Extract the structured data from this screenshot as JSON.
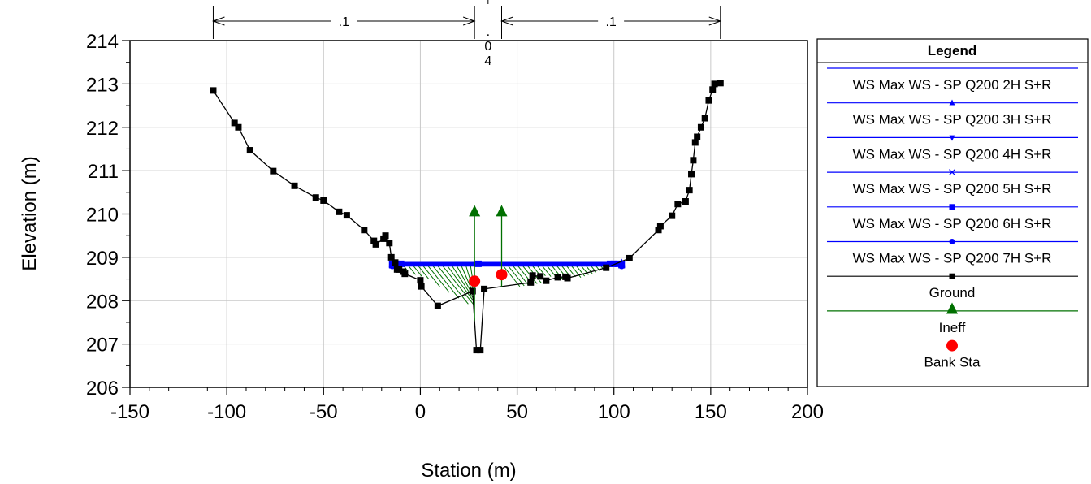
{
  "chart_data": {
    "type": "line",
    "title": "",
    "xlabel": "Station (m)",
    "ylabel": "Elevation (m)",
    "xlim": [
      -150,
      200
    ],
    "ylim": [
      206,
      214
    ],
    "x_ticks": [
      "-150",
      "-100",
      "-50",
      "0",
      "50",
      "100",
      "150",
      "200"
    ],
    "y_ticks": [
      "206",
      "207",
      "208",
      "209",
      "210",
      "211",
      "212",
      "213",
      "214"
    ],
    "grid": true,
    "legend_placement": "right",
    "legend_title": "Legend",
    "manning_n": {
      "left": {
        "label": ".1",
        "from": -107,
        "to": 28
      },
      "channel": {
        "label": ".04",
        "from": 28,
        "to": 42
      },
      "right": {
        "label": ".1",
        "from": 42,
        "to": 155
      }
    },
    "series": [
      {
        "name": "WS Max WS - SP Q200 2H S+R",
        "color": "#0000ff",
        "marker": "none",
        "x": [
          -14.5,
          104
        ],
        "y": [
          208.85,
          208.85
        ]
      },
      {
        "name": "WS Max WS - SP Q200 3H S+R",
        "color": "#0000ff",
        "marker": "triangle-up",
        "x": [
          -14.5,
          104
        ],
        "y": [
          208.88,
          208.88
        ]
      },
      {
        "name": "WS Max WS - SP Q200 4H S+R",
        "color": "#0000ff",
        "marker": "triangle-down",
        "x": [
          -14.5,
          104
        ],
        "y": [
          208.86,
          208.86
        ]
      },
      {
        "name": "WS Max WS - SP Q200 5H S+R",
        "color": "#0000ff",
        "marker": "x",
        "x": [
          -14.5,
          104
        ],
        "y": [
          208.84,
          208.84
        ]
      },
      {
        "name": "WS Max WS - SP Q200 6H S+R",
        "color": "#0000ff",
        "marker": "square",
        "x": [
          -14.5,
          104
        ],
        "y": [
          208.82,
          208.82
        ]
      },
      {
        "name": "WS Max WS - SP Q200 7H S+R",
        "color": "#0000ff",
        "marker": "circle",
        "x": [
          -14.5,
          104
        ],
        "y": [
          208.8,
          208.8
        ]
      },
      {
        "name": "Ground",
        "color": "#000000",
        "marker": "square",
        "x": [
          -107,
          -96,
          -94,
          -88,
          -76,
          -65,
          -54,
          -50,
          -42,
          -38,
          -29,
          -24,
          -23,
          -19,
          -18,
          -16,
          -15,
          -13,
          -12,
          -11,
          -9,
          -8,
          0,
          0.5,
          9,
          27,
          29,
          31,
          33,
          57,
          58,
          62,
          65,
          71,
          75,
          76,
          96,
          108,
          123,
          124,
          130,
          133,
          137,
          139,
          140,
          141,
          142,
          143,
          145,
          147,
          149,
          151,
          152,
          155
        ],
        "y": [
          212.85,
          212.1,
          212.0,
          211.47,
          210.99,
          210.65,
          210.38,
          210.31,
          210.05,
          209.97,
          209.63,
          209.38,
          209.3,
          209.43,
          209.5,
          209.33,
          209.0,
          208.88,
          208.72,
          208.72,
          208.67,
          208.62,
          208.47,
          208.33,
          207.88,
          208.22,
          206.86,
          206.86,
          208.27,
          208.42,
          208.58,
          208.56,
          208.46,
          208.54,
          208.55,
          208.52,
          208.76,
          208.98,
          209.63,
          209.72,
          209.96,
          210.23,
          210.29,
          210.55,
          210.92,
          211.24,
          211.65,
          211.78,
          212.0,
          212.21,
          212.62,
          212.87,
          213.0,
          213.02
        ]
      },
      {
        "name": "Ineff",
        "color": "#007000",
        "marker": "triangle-up",
        "points": [
          {
            "x": 28,
            "y": 210.05
          },
          {
            "x": 42,
            "y": 210.05
          }
        ]
      },
      {
        "name": "Bank Sta",
        "color": "#ff0000",
        "marker": "circle",
        "points": [
          {
            "x": 28,
            "y": 208.45
          },
          {
            "x": 42,
            "y": 208.6
          }
        ]
      }
    ]
  }
}
